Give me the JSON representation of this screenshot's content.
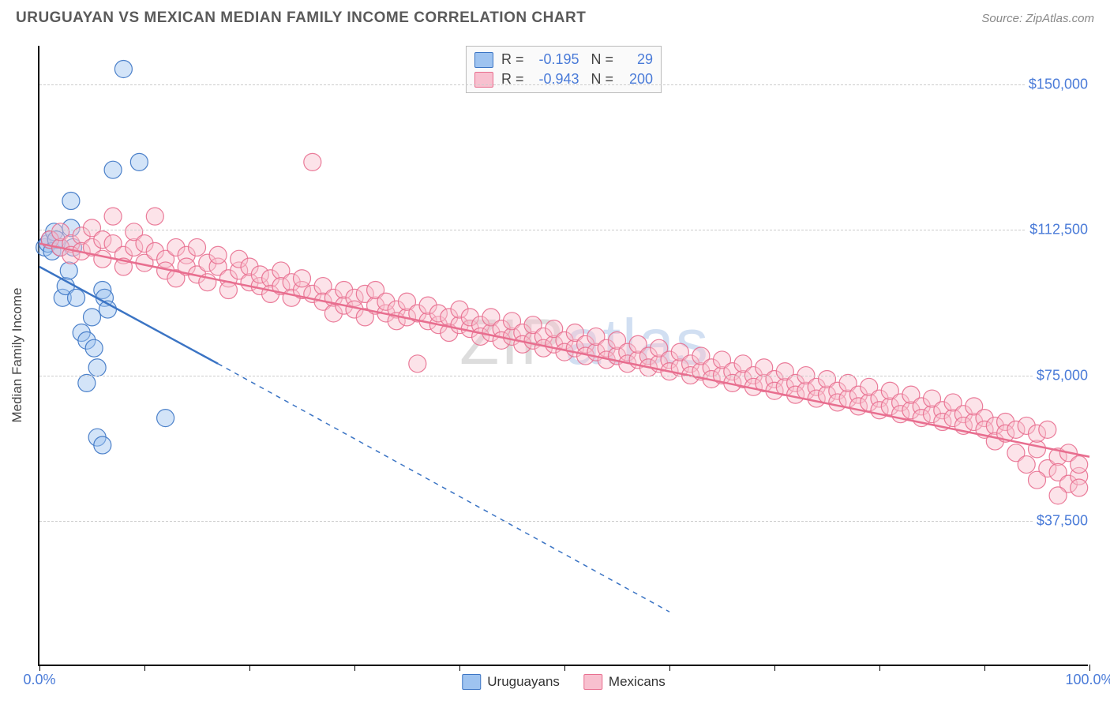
{
  "header": {
    "title": "URUGUAYAN VS MEXICAN MEDIAN FAMILY INCOME CORRELATION CHART",
    "source_prefix": "Source: ",
    "source": "ZipAtlas.com"
  },
  "watermark": {
    "part1": "ZIP",
    "part2": "atlas"
  },
  "chart": {
    "type": "scatter",
    "y_axis_label": "Median Family Income",
    "background_color": "#ffffff",
    "grid_color": "#cccccc",
    "axis_color": "#000000",
    "tick_label_color": "#4a7bd8",
    "xlim": [
      0,
      100
    ],
    "ylim": [
      0,
      160000
    ],
    "x_ticks": [
      0,
      10,
      20,
      30,
      40,
      50,
      60,
      70,
      80,
      90,
      100
    ],
    "x_tick_labels": {
      "0": "0.0%",
      "100": "100.0%"
    },
    "y_gridlines": [
      37500,
      75000,
      112500,
      150000
    ],
    "y_tick_labels": {
      "37500": "$37,500",
      "75000": "$75,000",
      "112500": "$112,500",
      "150000": "$150,000"
    },
    "marker_radius": 11,
    "marker_opacity": 0.45,
    "marker_stroke_opacity": 0.9,
    "trendline_width": 2.5,
    "series": [
      {
        "name": "Uruguayans",
        "fill_color": "#9ec3f0",
        "stroke_color": "#3b74c4",
        "R": "-0.195",
        "N": "29",
        "trendline": {
          "x1": 0,
          "y1": 103000,
          "x2": 17,
          "y2": 78000,
          "extend_x2": 60,
          "extend_y2": 14000,
          "dash": "6,6"
        },
        "points": [
          [
            0.5,
            108000
          ],
          [
            0.8,
            109000
          ],
          [
            1.0,
            110000
          ],
          [
            1.2,
            107000
          ],
          [
            1.4,
            112000
          ],
          [
            1.6,
            110000
          ],
          [
            2.0,
            108000
          ],
          [
            2.2,
            95000
          ],
          [
            2.5,
            98000
          ],
          [
            2.8,
            102000
          ],
          [
            3.0,
            113000
          ],
          [
            3.2,
            108000
          ],
          [
            3.5,
            95000
          ],
          [
            4.0,
            86000
          ],
          [
            4.5,
            84000
          ],
          [
            5.0,
            90000
          ],
          [
            5.2,
            82000
          ],
          [
            5.5,
            77000
          ],
          [
            6.0,
            97000
          ],
          [
            6.2,
            95000
          ],
          [
            6.5,
            92000
          ],
          [
            7.0,
            128000
          ],
          [
            8.0,
            154000
          ],
          [
            9.5,
            130000
          ],
          [
            3.0,
            120000
          ],
          [
            4.5,
            73000
          ],
          [
            5.5,
            59000
          ],
          [
            6.0,
            57000
          ],
          [
            12.0,
            64000
          ]
        ]
      },
      {
        "name": "Mexicans",
        "fill_color": "#f8c0cf",
        "stroke_color": "#e86e8f",
        "R": "-0.943",
        "N": "200",
        "trendline": {
          "x1": 0,
          "y1": 109000,
          "x2": 100,
          "y2": 54000
        },
        "points": [
          [
            1,
            110000
          ],
          [
            2,
            108000
          ],
          [
            2,
            112000
          ],
          [
            3,
            109000
          ],
          [
            3,
            106000
          ],
          [
            4,
            111000
          ],
          [
            4,
            107000
          ],
          [
            5,
            108000
          ],
          [
            5,
            113000
          ],
          [
            6,
            105000
          ],
          [
            6,
            110000
          ],
          [
            7,
            109000
          ],
          [
            7,
            116000
          ],
          [
            8,
            106000
          ],
          [
            8,
            103000
          ],
          [
            9,
            108000
          ],
          [
            9,
            112000
          ],
          [
            10,
            104000
          ],
          [
            10,
            109000
          ],
          [
            11,
            107000
          ],
          [
            11,
            116000
          ],
          [
            12,
            105000
          ],
          [
            12,
            102000
          ],
          [
            13,
            108000
          ],
          [
            13,
            100000
          ],
          [
            14,
            106000
          ],
          [
            14,
            103000
          ],
          [
            15,
            101000
          ],
          [
            15,
            108000
          ],
          [
            16,
            104000
          ],
          [
            16,
            99000
          ],
          [
            17,
            103000
          ],
          [
            17,
            106000
          ],
          [
            18,
            100000
          ],
          [
            18,
            97000
          ],
          [
            19,
            102000
          ],
          [
            19,
            105000
          ],
          [
            20,
            99000
          ],
          [
            20,
            103000
          ],
          [
            21,
            98000
          ],
          [
            21,
            101000
          ],
          [
            22,
            100000
          ],
          [
            22,
            96000
          ],
          [
            23,
            102000
          ],
          [
            23,
            98000
          ],
          [
            24,
            99000
          ],
          [
            24,
            95000
          ],
          [
            25,
            97000
          ],
          [
            25,
            100000
          ],
          [
            26,
            96000
          ],
          [
            26,
            130000
          ],
          [
            27,
            98000
          ],
          [
            27,
            94000
          ],
          [
            28,
            95000
          ],
          [
            28,
            91000
          ],
          [
            29,
            97000
          ],
          [
            29,
            93000
          ],
          [
            30,
            95000
          ],
          [
            30,
            92000
          ],
          [
            31,
            96000
          ],
          [
            31,
            90000
          ],
          [
            32,
            93000
          ],
          [
            32,
            97000
          ],
          [
            33,
            91000
          ],
          [
            33,
            94000
          ],
          [
            34,
            92000
          ],
          [
            34,
            89000
          ],
          [
            35,
            90000
          ],
          [
            35,
            94000
          ],
          [
            36,
            91000
          ],
          [
            36,
            78000
          ],
          [
            37,
            89000
          ],
          [
            37,
            93000
          ],
          [
            38,
            88000
          ],
          [
            38,
            91000
          ],
          [
            39,
            90000
          ],
          [
            39,
            86000
          ],
          [
            40,
            88000
          ],
          [
            40,
            92000
          ],
          [
            41,
            87000
          ],
          [
            41,
            90000
          ],
          [
            42,
            88000
          ],
          [
            42,
            85000
          ],
          [
            43,
            86000
          ],
          [
            43,
            90000
          ],
          [
            44,
            87000
          ],
          [
            44,
            84000
          ],
          [
            45,
            85000
          ],
          [
            45,
            89000
          ],
          [
            46,
            86000
          ],
          [
            46,
            83000
          ],
          [
            47,
            84000
          ],
          [
            47,
            88000
          ],
          [
            48,
            85000
          ],
          [
            48,
            82000
          ],
          [
            49,
            83000
          ],
          [
            49,
            87000
          ],
          [
            50,
            84000
          ],
          [
            50,
            81000
          ],
          [
            51,
            82000
          ],
          [
            51,
            86000
          ],
          [
            52,
            83000
          ],
          [
            52,
            80000
          ],
          [
            53,
            81000
          ],
          [
            53,
            85000
          ],
          [
            54,
            82000
          ],
          [
            54,
            79000
          ],
          [
            55,
            80000
          ],
          [
            55,
            84000
          ],
          [
            56,
            81000
          ],
          [
            56,
            78000
          ],
          [
            57,
            79000
          ],
          [
            57,
            83000
          ],
          [
            58,
            80000
          ],
          [
            58,
            77000
          ],
          [
            59,
            78000
          ],
          [
            59,
            82000
          ],
          [
            60,
            79000
          ],
          [
            60,
            76000
          ],
          [
            61,
            77000
          ],
          [
            61,
            81000
          ],
          [
            62,
            78000
          ],
          [
            62,
            75000
          ],
          [
            63,
            76000
          ],
          [
            63,
            80000
          ],
          [
            64,
            77000
          ],
          [
            64,
            74000
          ],
          [
            65,
            75000
          ],
          [
            65,
            79000
          ],
          [
            66,
            76000
          ],
          [
            66,
            73000
          ],
          [
            67,
            74000
          ],
          [
            67,
            78000
          ],
          [
            68,
            75000
          ],
          [
            68,
            72000
          ],
          [
            69,
            73000
          ],
          [
            69,
            77000
          ],
          [
            70,
            74000
          ],
          [
            70,
            71000
          ],
          [
            71,
            72000
          ],
          [
            71,
            76000
          ],
          [
            72,
            73000
          ],
          [
            72,
            70000
          ],
          [
            73,
            71000
          ],
          [
            73,
            75000
          ],
          [
            74,
            72000
          ],
          [
            74,
            69000
          ],
          [
            75,
            70000
          ],
          [
            75,
            74000
          ],
          [
            76,
            71000
          ],
          [
            76,
            68000
          ],
          [
            77,
            69000
          ],
          [
            77,
            73000
          ],
          [
            78,
            70000
          ],
          [
            78,
            67000
          ],
          [
            79,
            68000
          ],
          [
            79,
            72000
          ],
          [
            80,
            69000
          ],
          [
            80,
            66000
          ],
          [
            81,
            67000
          ],
          [
            81,
            71000
          ],
          [
            82,
            68000
          ],
          [
            82,
            65000
          ],
          [
            83,
            66000
          ],
          [
            83,
            70000
          ],
          [
            84,
            67000
          ],
          [
            84,
            64000
          ],
          [
            85,
            65000
          ],
          [
            85,
            69000
          ],
          [
            86,
            66000
          ],
          [
            86,
            63000
          ],
          [
            87,
            64000
          ],
          [
            87,
            68000
          ],
          [
            88,
            65000
          ],
          [
            88,
            62000
          ],
          [
            89,
            63000
          ],
          [
            89,
            67000
          ],
          [
            90,
            64000
          ],
          [
            90,
            61000
          ],
          [
            91,
            62000
          ],
          [
            91,
            58000
          ],
          [
            92,
            63000
          ],
          [
            92,
            60000
          ],
          [
            93,
            55000
          ],
          [
            93,
            61000
          ],
          [
            94,
            62000
          ],
          [
            94,
            52000
          ],
          [
            95,
            56000
          ],
          [
            95,
            60000
          ],
          [
            96,
            61000
          ],
          [
            96,
            51000
          ],
          [
            97,
            54000
          ],
          [
            97,
            50000
          ],
          [
            98,
            47000
          ],
          [
            98,
            55000
          ],
          [
            99,
            49000
          ],
          [
            99,
            46000
          ],
          [
            99,
            52000
          ],
          [
            97,
            44000
          ],
          [
            95,
            48000
          ]
        ]
      }
    ]
  },
  "legend_bottom": [
    {
      "label": "Uruguayans",
      "fill": "#9ec3f0",
      "stroke": "#3b74c4"
    },
    {
      "label": "Mexicans",
      "fill": "#f8c0cf",
      "stroke": "#e86e8f"
    }
  ]
}
